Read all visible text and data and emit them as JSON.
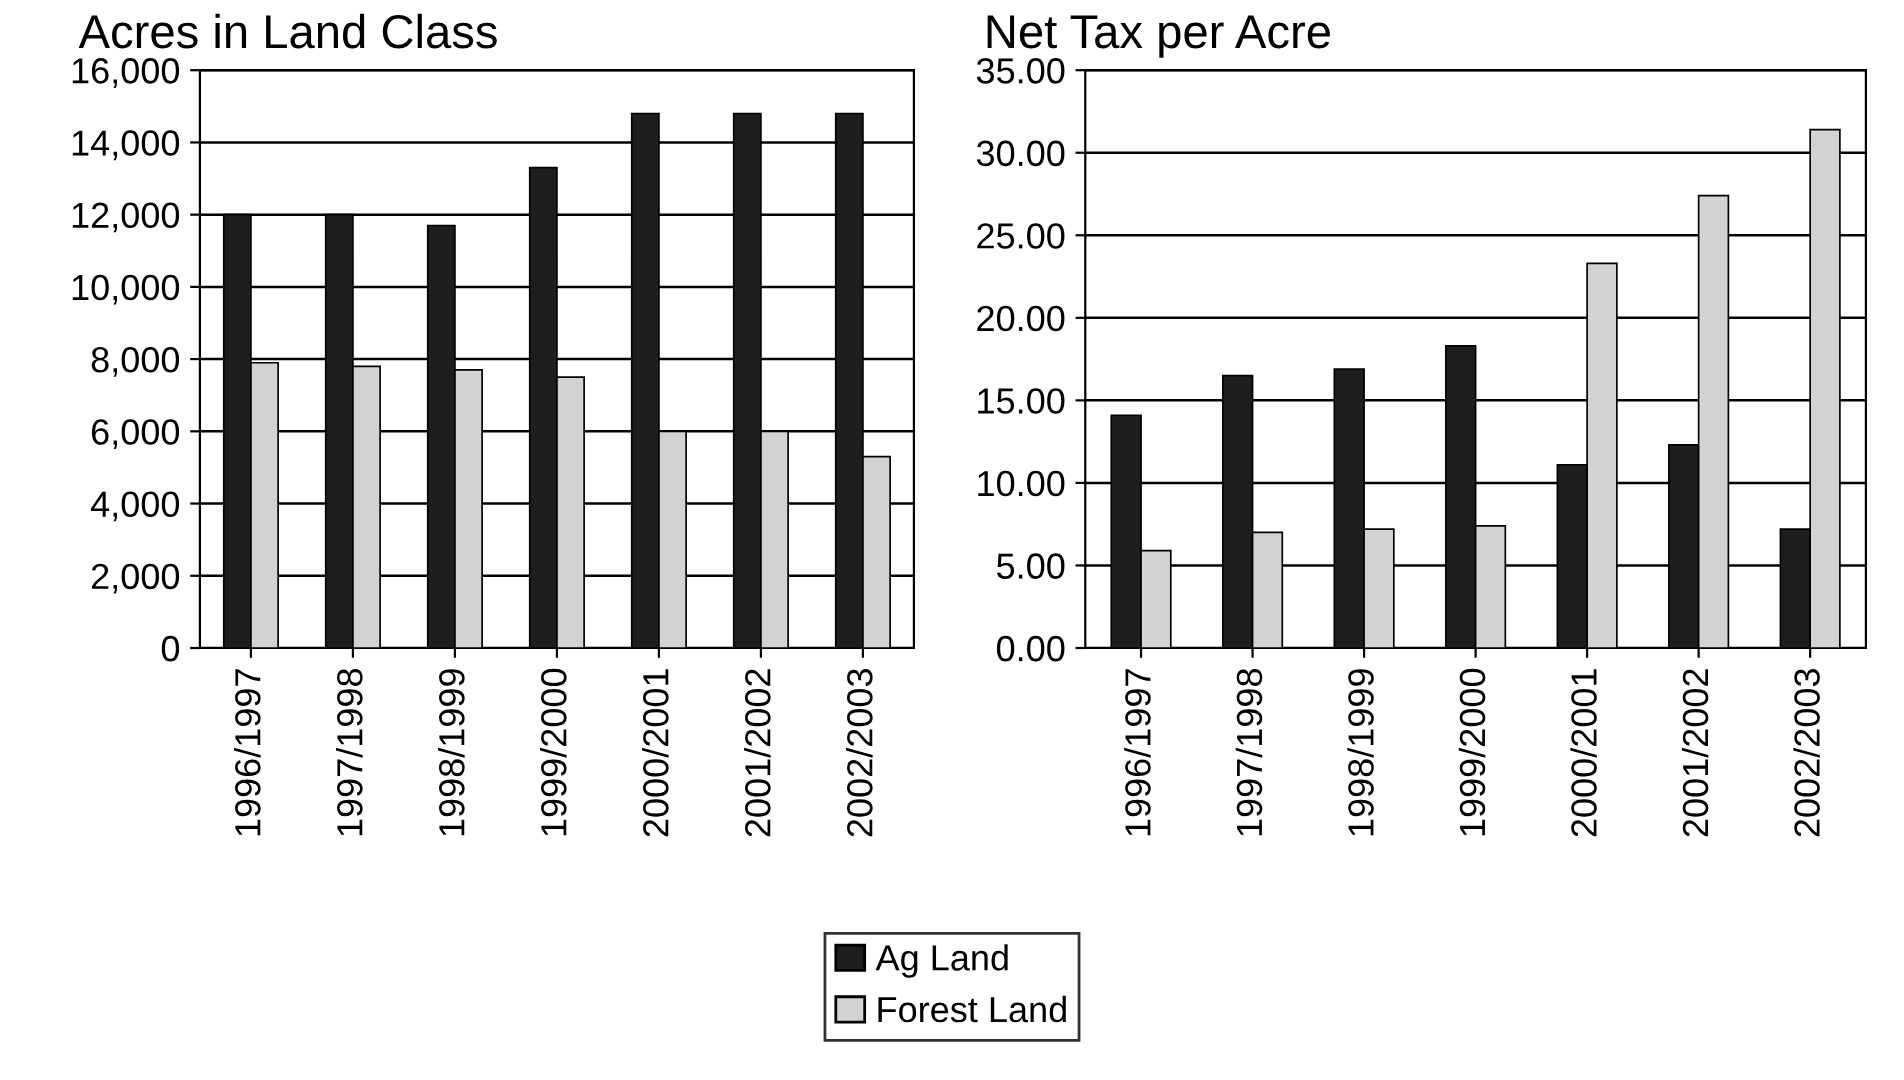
{
  "chart_data": [
    {
      "type": "bar",
      "title": "Acres in Land Class",
      "categories": [
        "1996/1997",
        "1997/1998",
        "1998/1999",
        "1999/2000",
        "2000/2001",
        "2001/2002",
        "2002/2003"
      ],
      "series": [
        {
          "color": "#1e1e1e",
          "values": [
            12000,
            12000,
            11700,
            13300,
            14800,
            14800,
            14800
          ]
        },
        {
          "color": "#d2d2d2",
          "values": [
            7900,
            7800,
            7700,
            7500,
            6000,
            6000,
            5300
          ]
        }
      ],
      "ylim": [
        0,
        16000
      ],
      "yticks": [
        {
          "value": 0,
          "label": "0"
        },
        {
          "value": 2000,
          "label": "2,000"
        },
        {
          "value": 4000,
          "label": "4,000"
        },
        {
          "value": 6000,
          "label": "6,000"
        },
        {
          "value": 8000,
          "label": "8,000"
        },
        {
          "value": 10000,
          "label": "10,000"
        },
        {
          "value": 12000,
          "label": "12,000"
        },
        {
          "value": 14000,
          "label": "14,000"
        },
        {
          "value": 16000,
          "label": "16,000"
        }
      ],
      "grid": "y"
    },
    {
      "type": "bar",
      "title": "Net Tax per Acre",
      "categories": [
        "1996/1997",
        "1997/1998",
        "1998/1999",
        "1999/2000",
        "2000/2001",
        "2001/2002",
        "2002/2003"
      ],
      "series": [
        {
          "name": "Ag Land",
          "color": "#1e1e1e",
          "values": [
            14.1,
            16.5,
            16.9,
            18.3,
            11.1,
            12.3,
            7.2
          ]
        },
        {
          "name": "Forest Land",
          "color": "#d2d2d2",
          "values": [
            5.9,
            7.0,
            7.2,
            7.4,
            23.3,
            27.4,
            31.4
          ]
        }
      ],
      "ylim": [
        0,
        35
      ],
      "yticks": [
        {
          "value": 0,
          "label": "0.00"
        },
        {
          "value": 5,
          "label": "5.00"
        },
        {
          "value": 10,
          "label": "10.00"
        },
        {
          "value": 15,
          "label": "15.00"
        },
        {
          "value": 20,
          "label": "20.00"
        },
        {
          "value": 25,
          "label": "25.00"
        },
        {
          "value": 30,
          "label": "30.00"
        },
        {
          "value": 35,
          "label": "35.00"
        }
      ],
      "grid": "y",
      "legend": "bottom"
    }
  ]
}
